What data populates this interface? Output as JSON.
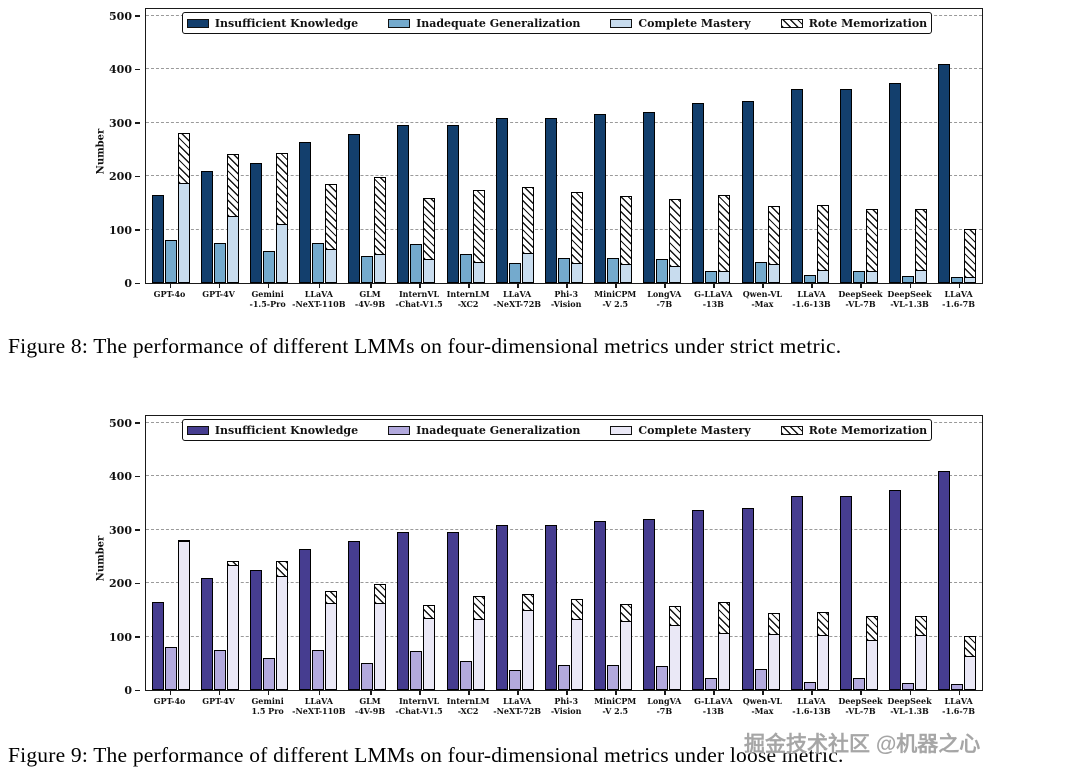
{
  "watermark": "掘金技术社区 @机器之心",
  "figure8": {
    "caption": "Figure 8: The performance of different LMMs on four-dimensional metrics under strict metric."
  },
  "figure9": {
    "caption": "Figure 9: The performance of different LMMs on four-dimensional metrics under loose metric."
  },
  "chart_data": [
    {
      "type": "bar",
      "metric": "strict",
      "title": "",
      "xlabel": "",
      "ylabel": "Number",
      "ylim": [
        0,
        500
      ],
      "yticks": [
        0,
        100,
        200,
        300,
        400,
        500
      ],
      "grid": "horizontal-dashed",
      "legend_position": "top-inside",
      "categories": [
        [
          "GPT-4o",
          ""
        ],
        [
          "GPT-4V",
          ""
        ],
        [
          "Gemini",
          "-1.5-Pro"
        ],
        [
          "LLaVA",
          "-NeXT-110B"
        ],
        [
          "GLM",
          "-4V-9B"
        ],
        [
          "InternVL",
          "-Chat-V1.5"
        ],
        [
          "InternLM",
          "-XC2"
        ],
        [
          "LLaVA",
          "-NeXT-72B"
        ],
        [
          "Phi-3",
          "-Vision"
        ],
        [
          "MiniCPM",
          "-V 2.5"
        ],
        [
          "LongVA",
          "-7B"
        ],
        [
          "G-LLaVA",
          "-13B"
        ],
        [
          "Qwen-VL",
          "-Max"
        ],
        [
          "LLaVA",
          "-1.6-13B"
        ],
        [
          "DeepSeek",
          "-VL-7B"
        ],
        [
          "DeepSeek",
          "-VL-1.3B"
        ],
        [
          "LLaVA",
          "-1.6-7B"
        ]
      ],
      "series": [
        {
          "name": "Insufficient Knowledge",
          "color": "#133f6d",
          "stack": false,
          "values": [
            165,
            210,
            225,
            264,
            278,
            295,
            296,
            308,
            308,
            316,
            320,
            337,
            341,
            362,
            362,
            373,
            410
          ]
        },
        {
          "name": "Inadequate Generalization",
          "color": "#74aacd",
          "stack": false,
          "values": [
            80,
            75,
            60,
            75,
            50,
            72,
            55,
            37,
            47,
            47,
            45,
            22,
            40,
            15,
            22,
            14,
            12
          ]
        },
        {
          "name": "Complete Mastery",
          "color": "#c8dcee",
          "stack": true,
          "values": [
            185,
            123,
            108,
            62,
            53,
            43,
            38,
            55,
            35,
            33,
            30,
            20,
            33,
            22,
            20,
            22,
            9
          ]
        },
        {
          "name": "Rote Memorization",
          "color": "hatch",
          "stack": true,
          "values": [
            95,
            117,
            134,
            123,
            145,
            115,
            136,
            125,
            134,
            129,
            128,
            144,
            110,
            123,
            118,
            116,
            92
          ]
        }
      ]
    },
    {
      "type": "bar",
      "metric": "loose",
      "title": "",
      "xlabel": "",
      "ylabel": "Number",
      "ylim": [
        0,
        500
      ],
      "yticks": [
        0,
        100,
        200,
        300,
        400,
        500
      ],
      "grid": "horizontal-dashed",
      "legend_position": "top-inside",
      "categories": [
        [
          "GPT-4o",
          ""
        ],
        [
          "GPT-4V",
          ""
        ],
        [
          "Gemini",
          "1.5 Pro"
        ],
        [
          "LLaVA",
          "-NeXT-110B"
        ],
        [
          "GLM",
          "-4V-9B"
        ],
        [
          "InternVL",
          "-Chat-V1.5"
        ],
        [
          "InternLM",
          "-XC2"
        ],
        [
          "LLaVA",
          "-NeXT-72B"
        ],
        [
          "Phi-3",
          "-Vision"
        ],
        [
          "MiniCPM",
          "-V 2.5"
        ],
        [
          "LongVA",
          "-7B"
        ],
        [
          "G-LLaVA",
          "-13B"
        ],
        [
          "Qwen-VL",
          "-Max"
        ],
        [
          "LLaVA",
          "-1.6-13B"
        ],
        [
          "DeepSeek",
          "-VL-7B"
        ],
        [
          "DeepSeek",
          "-VL-1.3B"
        ],
        [
          "LLaVA",
          "-1.6-7B"
        ]
      ],
      "series": [
        {
          "name": "Insufficient Knowledge",
          "color": "#463d90",
          "stack": false,
          "values": [
            165,
            210,
            225,
            264,
            278,
            295,
            296,
            308,
            308,
            316,
            320,
            337,
            341,
            362,
            362,
            373,
            410
          ]
        },
        {
          "name": "Inadequate Generalization",
          "color": "#b2a9dd",
          "stack": false,
          "values": [
            80,
            75,
            60,
            75,
            50,
            72,
            55,
            37,
            47,
            47,
            45,
            22,
            40,
            15,
            22,
            14,
            12
          ]
        },
        {
          "name": "Complete Mastery",
          "color": "#eae8f6",
          "stack": true,
          "values": [
            277,
            232,
            212,
            160,
            160,
            132,
            130,
            148,
            130,
            128,
            120,
            104,
            102,
            101,
            91,
            101,
            61
          ]
        },
        {
          "name": "Rote Memorization",
          "color": "hatch",
          "stack": true,
          "values": [
            4,
            9,
            30,
            25,
            38,
            26,
            44,
            32,
            39,
            34,
            38,
            60,
            41,
            44,
            47,
            37,
            39
          ]
        }
      ]
    }
  ]
}
